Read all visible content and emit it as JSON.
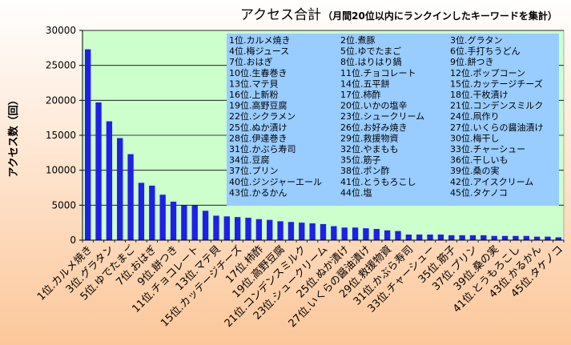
{
  "colors": {
    "bg_top": "#FFFFFF",
    "bg_bottom": "#FCC79A",
    "plot_bg": "#CCFFCC",
    "bar": "#1F1FEA",
    "legend_bg": "#99CCFF",
    "axis": "#000000",
    "grid": "#000000"
  },
  "chart_data": {
    "type": "bar",
    "title": "アクセス合計",
    "subtitle": "（月間20位以内にランクインしたキーワードを集計）",
    "ylabel": "アクセス数（回）",
    "xlabel": "",
    "ylim": [
      0,
      30000
    ],
    "yticks": [
      0,
      5000,
      10000,
      15000,
      20000,
      25000,
      30000
    ],
    "grid": "horizontal",
    "categories": [
      "1位.カルメ焼き",
      "2位.煮豚",
      "3位.グラタン",
      "4位.梅ジュース",
      "5位.ゆでたまご",
      "6位.手打ちうどん",
      "7位.おはぎ",
      "8位.はりはり鍋",
      "9位.餅つき",
      "10位.生春巻き",
      "11位.チョコレート",
      "12位.ポップコーン",
      "13位.マテ貝",
      "14位.五平餅",
      "15位.カッテージチーズ",
      "16位.上新粉",
      "17位.柿酢",
      "18位.干枚漬け",
      "19位.高野豆腐",
      "20位.いかの塩辛",
      "21位.コンデンスミルク",
      "22位.シクラメン",
      "23位.シュークリーム",
      "24位.凧作り",
      "25位.ぬか漬け",
      "26位.お好み焼き",
      "27位.いくらの醤油漬け",
      "28位.伊達巻き",
      "29位.救援物資",
      "30位.梅干し",
      "31位.かぶら寿司",
      "32位.やまもも",
      "33位.チャーシュー",
      "34位.豆腐",
      "35位.筋子",
      "36位.干しいも",
      "37位.プリン",
      "38位.ポン酢",
      "39位.桑の実",
      "40位.ジンジャーエール",
      "41位.とうもろこし",
      "42位.アイスクリーム",
      "43位.かるかん",
      "44位.塩",
      "45位.タケノコ"
    ],
    "values": [
      27300,
      19700,
      17000,
      14600,
      12300,
      8200,
      7800,
      6500,
      5500,
      5000,
      5000,
      4200,
      3500,
      3400,
      3300,
      3200,
      3000,
      2900,
      2700,
      2600,
      2500,
      2400,
      2300,
      2000,
      1800,
      1800,
      1700,
      1600,
      1400,
      1300,
      800,
      800,
      800,
      800,
      700,
      700,
      700,
      700,
      600,
      600,
      600,
      600,
      500,
      500,
      400
    ],
    "xtick_labels": [
      "1位.カルメ焼き",
      "3位.グラタン",
      "5位.ゆでたまご",
      "7位.おはぎ",
      "9位.餅つき",
      "11位.チョコレート",
      "13位.マテ貝",
      "15位.カッテージチーズ",
      "17位.柿酢",
      "19位.高野豆腐",
      "21位.コンデンスミルク",
      "23位.シュークリーム",
      "25位.ぬか漬け",
      "27位.いくらの醤油漬け",
      "29位.救援物資",
      "31位.かぶら寿司",
      "33位.チャーシュー",
      "35位.筋子",
      "37位.プリン",
      "39位.桑の実",
      "41位.とうもろこし",
      "43位.かるかん",
      "45位.タケノコ"
    ],
    "legend_columns": 3,
    "legend_placement": "top-right, inside plot",
    "legend": [
      "1位.カルメ焼き",
      "2位.煮豚",
      "3位.グラタン",
      "4位.梅ジュース",
      "5位.ゆでたまご",
      "6位.手打ちうどん",
      "7位.おはぎ",
      "8位.はりはり鍋",
      "9位.餅つき",
      "10位.生春巻き",
      "11位.チョコレート",
      "12位.ポップコーン",
      "13位.マテ貝",
      "14位.五平餅",
      "15位.カッテージチーズ",
      "16位.上新粉",
      "17位.柿酢",
      "18位.干枚漬け",
      "19位.高野豆腐",
      "20位.いかの塩辛",
      "21位.コンデンスミルク",
      "22位.シクラメン",
      "23位.シュークリーム",
      "24位.凧作り",
      "25位.ぬか漬け",
      "26位.お好み焼き",
      "27位.いくらの醤油漬け",
      "28位.伊達巻き",
      "29位.救援物資",
      "30位.梅干し",
      "31位.かぶら寿司",
      "32位.やまもも",
      "33位.チャーシュー",
      "34位.豆腐",
      "35位.筋子",
      "36位.干しいも",
      "37位.プリン",
      "38位.ポン酢",
      "39位.桑の実",
      "40位.ジンジャーエール",
      "41位.とうもろこし",
      "42位.アイスクリーム",
      "43位.かるかん",
      "44位.塩",
      "45位.タケノコ"
    ]
  }
}
